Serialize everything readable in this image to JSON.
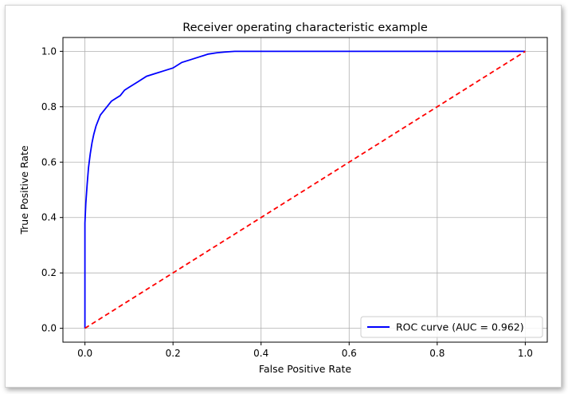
{
  "chart_data": {
    "type": "line",
    "title": "Receiver operating characteristic example",
    "xlabel": "False Positive Rate",
    "ylabel": "True Positive Rate",
    "xlim": [
      -0.05,
      1.05
    ],
    "ylim": [
      -0.05,
      1.05
    ],
    "xticks": [
      "0.0",
      "0.2",
      "0.4",
      "0.6",
      "0.8",
      "1.0"
    ],
    "yticks": [
      "0.0",
      "0.2",
      "0.4",
      "0.6",
      "0.8",
      "1.0"
    ],
    "grid": true,
    "legend_position": "lower-right",
    "series": [
      {
        "name": "ROC curve (AUC = 0.962)",
        "color": "#0000ff",
        "style": "solid",
        "x": [
          0.0,
          0.0,
          0.002,
          0.005,
          0.008,
          0.012,
          0.016,
          0.02,
          0.025,
          0.03,
          0.035,
          0.04,
          0.05,
          0.06,
          0.07,
          0.08,
          0.09,
          0.1,
          0.12,
          0.14,
          0.16,
          0.18,
          0.2,
          0.22,
          0.24,
          0.26,
          0.28,
          0.3,
          0.32,
          0.34,
          0.4,
          0.5,
          0.6,
          0.7,
          0.8,
          0.9,
          1.0
        ],
        "y": [
          0.0,
          0.38,
          0.45,
          0.52,
          0.58,
          0.63,
          0.67,
          0.7,
          0.73,
          0.75,
          0.77,
          0.78,
          0.8,
          0.82,
          0.83,
          0.84,
          0.86,
          0.87,
          0.89,
          0.91,
          0.92,
          0.93,
          0.94,
          0.96,
          0.97,
          0.98,
          0.99,
          0.995,
          0.998,
          1.0,
          1.0,
          1.0,
          1.0,
          1.0,
          1.0,
          1.0,
          1.0
        ]
      },
      {
        "name": "",
        "color": "#ff0000",
        "style": "dashed",
        "x": [
          0.0,
          1.0
        ],
        "y": [
          0.0,
          1.0
        ]
      }
    ]
  }
}
